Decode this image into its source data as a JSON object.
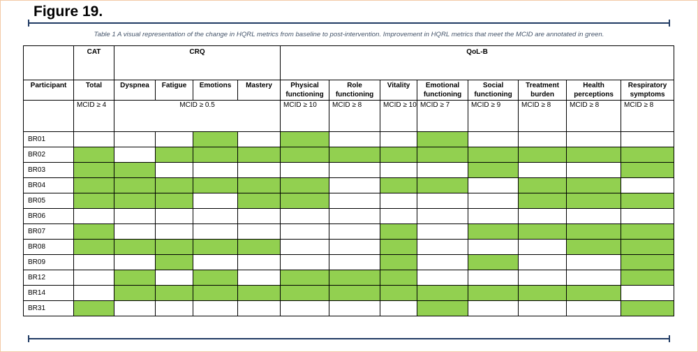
{
  "figure_title": "Figure 19.",
  "caption": "Table 1 A visual representation of the change in HQRL metrics from baseline to post-intervention.  Improvement in HQRL metrics that meet the MCID are annotated in green.",
  "colors": {
    "improved": "#92d050",
    "not_improved": "#ffffff",
    "rule": "#1f3a63"
  },
  "groups": {
    "cat": "CAT",
    "crq": "CRQ",
    "qolb": "QoL-B"
  },
  "columns": [
    {
      "label": "Participant"
    },
    {
      "label": "Total",
      "mcid": "MCID ≥ 4"
    },
    {
      "label": "Dyspnea"
    },
    {
      "label": "Fatigue"
    },
    {
      "label": "Emotions"
    },
    {
      "label": "Mastery"
    },
    {
      "label": "Physical functioning",
      "mcid": "MCID ≥ 10"
    },
    {
      "label": "Role functioning",
      "mcid": "MCID ≥ 8"
    },
    {
      "label": "Vitality",
      "mcid": "MCID ≥ 10"
    },
    {
      "label": "Emotional functioning",
      "mcid": "MCID ≥ 7"
    },
    {
      "label": "Social functioning",
      "mcid": "MCID ≥ 9"
    },
    {
      "label": "Treatment burden",
      "mcid": "MCID ≥ 8"
    },
    {
      "label": "Health perceptions",
      "mcid": "MCID ≥ 8"
    },
    {
      "label": "Respiratory symptoms",
      "mcid": "MCID ≥ 8"
    }
  ],
  "crq_mcid": "MCID ≥ 0.5",
  "rows": [
    {
      "id": "BR01",
      "improved": [
        0,
        0,
        0,
        1,
        0,
        1,
        0,
        0,
        1,
        0,
        0,
        0,
        0
      ]
    },
    {
      "id": "BR02",
      "improved": [
        1,
        0,
        1,
        1,
        1,
        1,
        1,
        1,
        1,
        1,
        1,
        1,
        1
      ]
    },
    {
      "id": "BR03",
      "improved": [
        1,
        1,
        0,
        0,
        0,
        0,
        0,
        0,
        0,
        1,
        0,
        0,
        1
      ]
    },
    {
      "id": "BR04",
      "improved": [
        1,
        1,
        1,
        1,
        1,
        1,
        0,
        1,
        1,
        0,
        1,
        1,
        0
      ]
    },
    {
      "id": "BR05",
      "improved": [
        1,
        1,
        1,
        0,
        1,
        1,
        0,
        0,
        0,
        0,
        1,
        1,
        1
      ]
    },
    {
      "id": "BR06",
      "improved": [
        0,
        0,
        0,
        0,
        0,
        0,
        0,
        0,
        0,
        0,
        0,
        0,
        0
      ]
    },
    {
      "id": "BR07",
      "improved": [
        1,
        0,
        0,
        0,
        0,
        0,
        0,
        1,
        0,
        1,
        1,
        1,
        1
      ]
    },
    {
      "id": "BR08",
      "improved": [
        1,
        1,
        1,
        1,
        1,
        0,
        0,
        1,
        0,
        0,
        0,
        1,
        1
      ]
    },
    {
      "id": "BR09",
      "improved": [
        0,
        0,
        1,
        0,
        0,
        0,
        0,
        1,
        0,
        1,
        0,
        0,
        1
      ]
    },
    {
      "id": "BR12",
      "improved": [
        0,
        1,
        0,
        1,
        0,
        1,
        1,
        1,
        0,
        0,
        0,
        0,
        1
      ]
    },
    {
      "id": "BR14",
      "improved": [
        0,
        1,
        1,
        1,
        1,
        1,
        1,
        1,
        1,
        1,
        1,
        1,
        0
      ]
    },
    {
      "id": "BR31",
      "improved": [
        1,
        0,
        0,
        0,
        0,
        0,
        0,
        0,
        1,
        0,
        0,
        0,
        1
      ]
    }
  ]
}
